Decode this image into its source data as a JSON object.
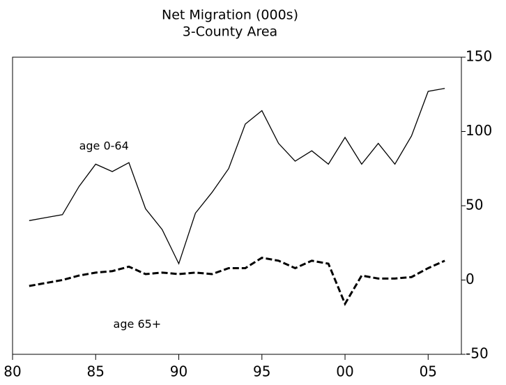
{
  "chart_data": {
    "type": "line",
    "title": "Net Migration (000s)",
    "subtitle": "3-County Area",
    "x": [
      1981,
      1982,
      1983,
      1984,
      1985,
      1986,
      1987,
      1988,
      1989,
      1990,
      1991,
      1992,
      1993,
      1994,
      1995,
      1996,
      1997,
      1998,
      1999,
      2000,
      2001,
      2002,
      2003,
      2004,
      2005,
      2006
    ],
    "series": [
      {
        "name": "age 0-64",
        "color": "#000000",
        "dash": false,
        "values": [
          40,
          42,
          44,
          63,
          78,
          73,
          79,
          48,
          34,
          11,
          45,
          59,
          75,
          105,
          114,
          92,
          80,
          87,
          78,
          96,
          78,
          92,
          78,
          97,
          127,
          129
        ]
      },
      {
        "name": "age 65+",
        "color": "#000000",
        "dash": true,
        "values": [
          -4,
          -2,
          0,
          3,
          5,
          6,
          9,
          4,
          5,
          4,
          5,
          4,
          8,
          8,
          15,
          13,
          8,
          13,
          11,
          -16,
          3,
          1,
          1,
          2,
          8,
          13
        ]
      }
    ],
    "xlim": [
      1980,
      2007
    ],
    "xticks": [
      {
        "value": 1980,
        "label": "80"
      },
      {
        "value": 1985,
        "label": "85"
      },
      {
        "value": 1990,
        "label": "90"
      },
      {
        "value": 1995,
        "label": "95"
      },
      {
        "value": 2000,
        "label": "00"
      },
      {
        "value": 2005,
        "label": "05"
      }
    ],
    "ylim": [
      -50,
      150
    ],
    "yticks": [
      -50,
      0,
      50,
      100,
      150
    ],
    "y_axis_side": "right",
    "grid": false
  }
}
